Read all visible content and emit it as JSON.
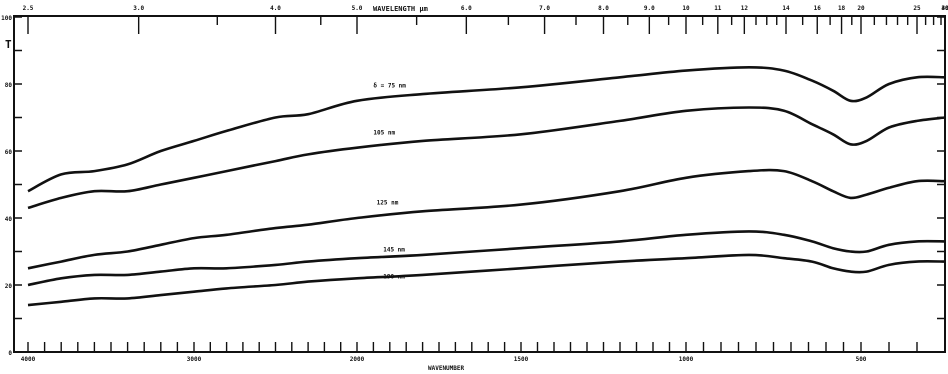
{
  "chart_data": {
    "type": "line",
    "ylabel": "T",
    "xlabel": "WAVENUMBER",
    "top_axis_label": "WAVELENGTH μm",
    "ylim": [
      0,
      100
    ],
    "y_ticks": [
      0,
      20,
      40,
      60,
      80,
      100
    ],
    "x_tick_labels": [
      {
        "value": 4000,
        "text": "4000"
      },
      {
        "value": 3000,
        "text": "3000"
      },
      {
        "value": 2000,
        "text": "2000"
      },
      {
        "value": 1500,
        "text": "1500"
      },
      {
        "value": 1000,
        "text": "1000"
      },
      {
        "value": 500,
        "text": "500"
      }
    ],
    "top_tick_labels": [
      {
        "value": 2.5,
        "text": "2.5"
      },
      {
        "value": 3.0,
        "text": "3.0"
      },
      {
        "value": 4.0,
        "text": "4.0"
      },
      {
        "value": 5.0,
        "text": "5.0"
      },
      {
        "value": 6.0,
        "text": "6.0"
      },
      {
        "value": 7.0,
        "text": "7.0"
      },
      {
        "value": 8.0,
        "text": "8.0"
      },
      {
        "value": 9.0,
        "text": "9.0"
      },
      {
        "value": 10,
        "text": "10"
      },
      {
        "value": 11,
        "text": "11"
      },
      {
        "value": 12,
        "text": "12"
      },
      {
        "value": 14,
        "text": "14"
      },
      {
        "value": 16,
        "text": "16"
      },
      {
        "value": 18,
        "text": "18"
      },
      {
        "value": 20,
        "text": "20"
      },
      {
        "value": 25,
        "text": "25"
      },
      {
        "value": 30,
        "text": "30"
      },
      {
        "value": 40,
        "text": "40"
      }
    ],
    "series": [
      {
        "name": "δ = 75 nm",
        "points": [
          [
            4000,
            48
          ],
          [
            3800,
            53
          ],
          [
            3600,
            54
          ],
          [
            3400,
            56
          ],
          [
            3200,
            60
          ],
          [
            3000,
            63
          ],
          [
            2800,
            66
          ],
          [
            2500,
            70
          ],
          [
            2300,
            71
          ],
          [
            2000,
            75
          ],
          [
            1800,
            77
          ],
          [
            1500,
            79
          ],
          [
            1200,
            82
          ],
          [
            1000,
            84
          ],
          [
            820,
            85
          ],
          [
            720,
            84
          ],
          [
            640,
            81
          ],
          [
            580,
            78
          ],
          [
            530,
            75
          ],
          [
            490,
            76
          ],
          [
            450,
            80
          ],
          [
            400,
            82
          ],
          [
            350,
            82
          ]
        ]
      },
      {
        "name": "105 nm",
        "points": [
          [
            4000,
            43
          ],
          [
            3800,
            46
          ],
          [
            3600,
            48
          ],
          [
            3400,
            48
          ],
          [
            3200,
            50
          ],
          [
            3000,
            52
          ],
          [
            2800,
            54
          ],
          [
            2500,
            57
          ],
          [
            2300,
            59
          ],
          [
            2000,
            61
          ],
          [
            1800,
            63
          ],
          [
            1500,
            65
          ],
          [
            1200,
            69
          ],
          [
            1000,
            72
          ],
          [
            820,
            73
          ],
          [
            720,
            72
          ],
          [
            640,
            68
          ],
          [
            580,
            65
          ],
          [
            530,
            62
          ],
          [
            490,
            63
          ],
          [
            450,
            67
          ],
          [
            400,
            69
          ],
          [
            350,
            70
          ]
        ]
      },
      {
        "name": "125 nm",
        "points": [
          [
            4000,
            25
          ],
          [
            3800,
            27
          ],
          [
            3600,
            29
          ],
          [
            3400,
            30
          ],
          [
            3200,
            32
          ],
          [
            3000,
            34
          ],
          [
            2800,
            35
          ],
          [
            2500,
            37
          ],
          [
            2300,
            38
          ],
          [
            2000,
            40
          ],
          [
            1800,
            42
          ],
          [
            1500,
            44
          ],
          [
            1200,
            48
          ],
          [
            1000,
            52
          ],
          [
            820,
            54
          ],
          [
            720,
            54
          ],
          [
            640,
            51
          ],
          [
            580,
            48
          ],
          [
            530,
            46
          ],
          [
            490,
            47
          ],
          [
            450,
            49
          ],
          [
            400,
            51
          ],
          [
            350,
            51
          ]
        ]
      },
      {
        "name": "145 nm",
        "points": [
          [
            4000,
            20
          ],
          [
            3800,
            22
          ],
          [
            3600,
            23
          ],
          [
            3400,
            23
          ],
          [
            3200,
            24
          ],
          [
            3000,
            25
          ],
          [
            2800,
            25
          ],
          [
            2500,
            26
          ],
          [
            2300,
            27
          ],
          [
            2000,
            28
          ],
          [
            1800,
            29
          ],
          [
            1500,
            31
          ],
          [
            1200,
            33
          ],
          [
            1000,
            35
          ],
          [
            820,
            36
          ],
          [
            720,
            35
          ],
          [
            640,
            33
          ],
          [
            580,
            31
          ],
          [
            530,
            30
          ],
          [
            490,
            30
          ],
          [
            450,
            32
          ],
          [
            400,
            33
          ],
          [
            350,
            33
          ]
        ]
      },
      {
        "name": "190 nm",
        "points": [
          [
            4000,
            14
          ],
          [
            3800,
            15
          ],
          [
            3600,
            16
          ],
          [
            3400,
            16
          ],
          [
            3200,
            17
          ],
          [
            3000,
            18
          ],
          [
            2800,
            19
          ],
          [
            2500,
            20
          ],
          [
            2300,
            21
          ],
          [
            2000,
            22
          ],
          [
            1800,
            23
          ],
          [
            1500,
            25
          ],
          [
            1200,
            27
          ],
          [
            1000,
            28
          ],
          [
            820,
            29
          ],
          [
            720,
            28
          ],
          [
            640,
            27
          ],
          [
            580,
            25
          ],
          [
            530,
            24
          ],
          [
            490,
            24
          ],
          [
            450,
            26
          ],
          [
            400,
            27
          ],
          [
            350,
            27
          ]
        ]
      }
    ],
    "series_label_positions": [
      {
        "series": 0,
        "x": 1950,
        "y": 79
      },
      {
        "series": 1,
        "x": 1950,
        "y": 65
      },
      {
        "series": 2,
        "x": 1940,
        "y": 44
      },
      {
        "series": 3,
        "x": 1920,
        "y": 30
      },
      {
        "series": 4,
        "x": 1920,
        "y": 22
      }
    ],
    "grid": false,
    "line_color": "#111111"
  }
}
